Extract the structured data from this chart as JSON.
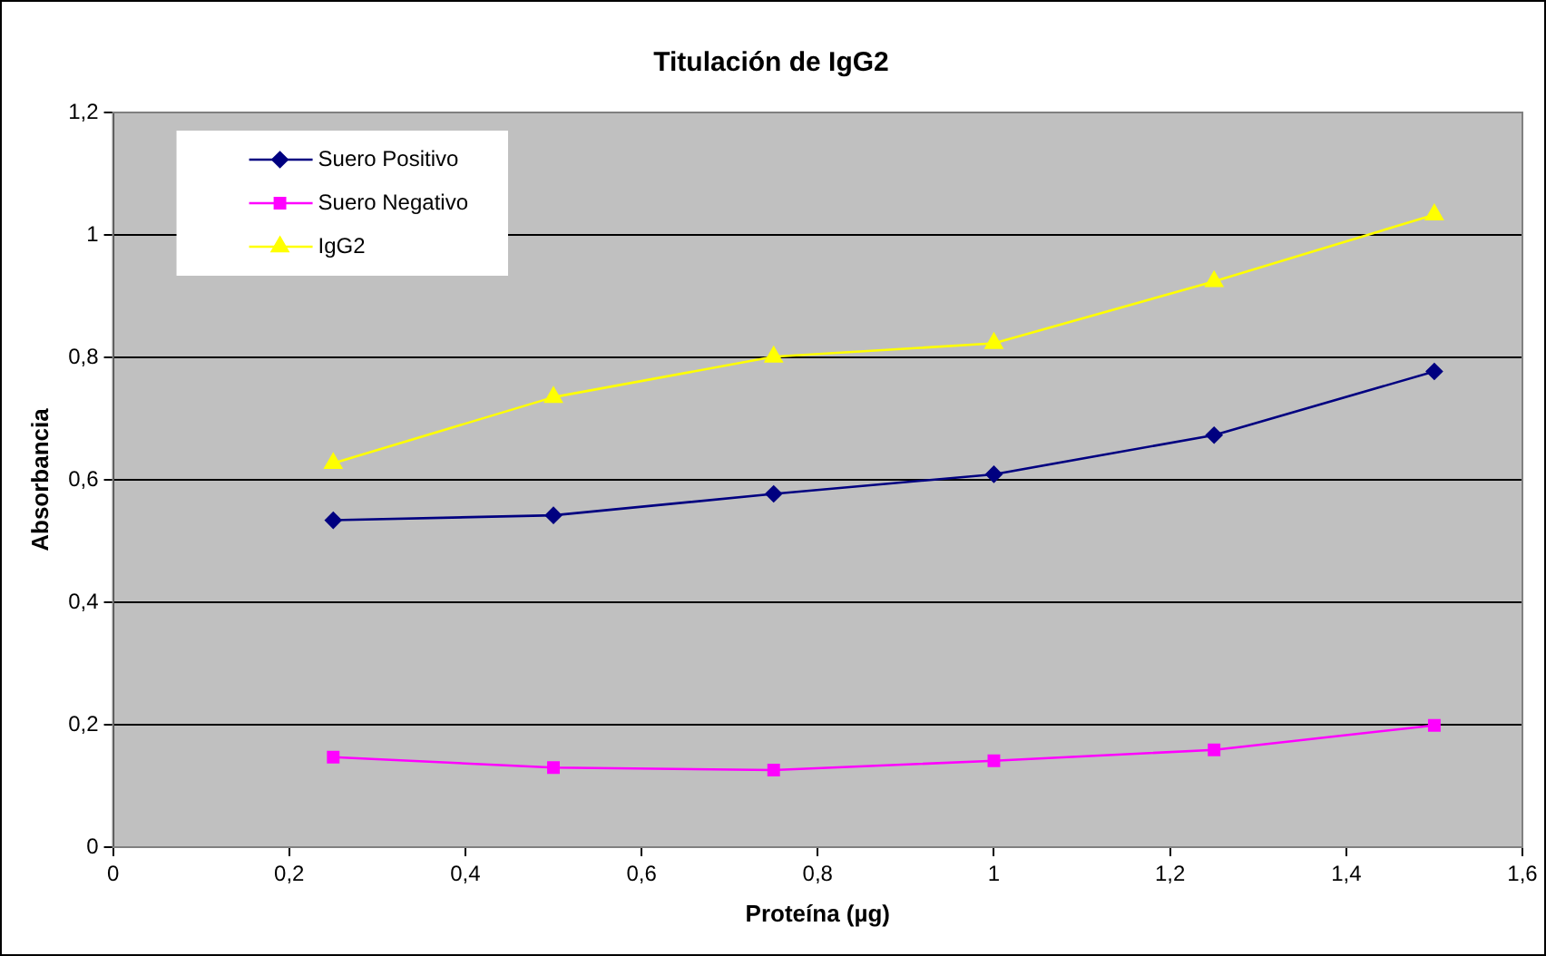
{
  "chart_data": {
    "type": "line",
    "title": "Titulación de IgG2",
    "xlabel": "Proteína (µg)",
    "ylabel": "Absorbancia",
    "x": [
      0.25,
      0.5,
      0.75,
      1,
      1.25,
      1.5
    ],
    "series": [
      {
        "name": "Suero Positivo",
        "color": "#000080",
        "marker": "diamond",
        "values": [
          0.534,
          0.542,
          0.577,
          0.609,
          0.673,
          0.777
        ]
      },
      {
        "name": "Suero Negativo",
        "color": "#ff00ff",
        "marker": "square",
        "values": [
          0.147,
          0.13,
          0.126,
          0.141,
          0.159,
          0.199
        ]
      },
      {
        "name": "IgG2",
        "color": "#ffff00",
        "marker": "triangle",
        "values": [
          0.627,
          0.735,
          0.801,
          0.823,
          0.924,
          1.033
        ]
      }
    ],
    "xlim": [
      0,
      1.6
    ],
    "xticks": [
      0,
      {
        "value": 0.2,
        "label": "0,2"
      },
      {
        "value": 0.4,
        "label": "0,4"
      },
      {
        "value": 0.6,
        "label": "0,6"
      },
      {
        "value": 0.8,
        "label": "0,8"
      },
      1,
      {
        "value": 1.2,
        "label": "1,2"
      },
      {
        "value": 1.4,
        "label": "1,4"
      },
      {
        "value": 1.6,
        "label": "1,6"
      }
    ],
    "ylim": [
      0,
      1.2
    ],
    "yticks": [
      0,
      {
        "value": 0.2,
        "label": "0,2"
      },
      {
        "value": 0.4,
        "label": "0,4"
      },
      {
        "value": 0.6,
        "label": "0,6"
      },
      {
        "value": 0.8,
        "label": "0,8"
      },
      1,
      {
        "value": 1.2,
        "label": "1,2"
      }
    ],
    "grid": "y",
    "legend": "top left",
    "line_style": "solid"
  }
}
